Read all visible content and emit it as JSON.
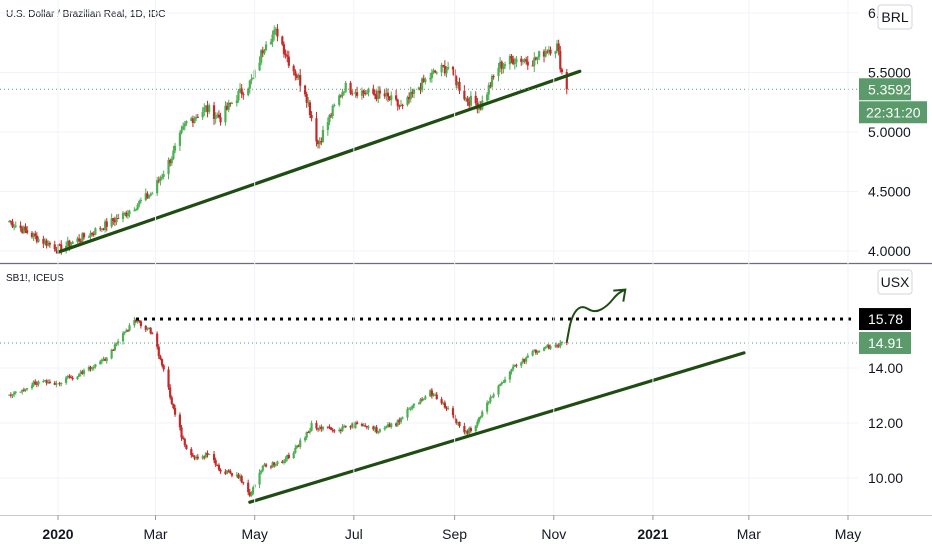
{
  "colors": {
    "up": "#26a69a",
    "down": "#b22833",
    "candle_up": "#4caf50",
    "candle_down": "#c62828",
    "trend": "#1e4d12",
    "price_green": "#5b9a6b",
    "price_black": "#000000",
    "grid_separator": "#9598a1"
  },
  "chart_data": [
    {
      "type": "candlestick",
      "title": "U.S. Dollar / Brazilian Real, 1D, IDC",
      "currency": "BRL",
      "ylim": [
        3.86,
        6.15
      ],
      "y_ticks": [
        "6.",
        "5.5000",
        "5.0000",
        "4.5000",
        "4.0000"
      ],
      "y_tick_values": [
        6.0,
        5.5,
        5.0,
        4.5,
        4.0
      ],
      "last_price": "5.3592",
      "last_price_value": 5.3592,
      "countdown": "22:31:20",
      "anchors": [
        [
          "2019-12-01",
          4.26
        ],
        [
          "2019-12-20",
          4.1
        ],
        [
          "2020-01-02",
          4.02
        ],
        [
          "2020-01-20",
          4.14
        ],
        [
          "2020-02-10",
          4.3
        ],
        [
          "2020-02-28",
          4.49
        ],
        [
          "2020-03-12",
          4.82
        ],
        [
          "2020-03-20",
          5.08
        ],
        [
          "2020-04-01",
          5.2
        ],
        [
          "2020-04-10",
          5.12
        ],
        [
          "2020-04-20",
          5.3
        ],
        [
          "2020-04-30",
          5.44
        ],
        [
          "2020-05-08",
          5.78
        ],
        [
          "2020-05-15",
          5.84
        ],
        [
          "2020-05-22",
          5.6
        ],
        [
          "2020-06-01",
          5.35
        ],
        [
          "2020-06-09",
          4.9
        ],
        [
          "2020-06-17",
          5.15
        ],
        [
          "2020-06-25",
          5.38
        ],
        [
          "2020-07-08",
          5.33
        ],
        [
          "2020-07-20",
          5.3
        ],
        [
          "2020-07-31",
          5.2
        ],
        [
          "2020-08-10",
          5.38
        ],
        [
          "2020-08-20",
          5.5
        ],
        [
          "2020-08-28",
          5.55
        ],
        [
          "2020-09-08",
          5.28
        ],
        [
          "2020-09-17",
          5.22
        ],
        [
          "2020-09-28",
          5.55
        ],
        [
          "2020-10-08",
          5.62
        ],
        [
          "2020-10-20",
          5.6
        ],
        [
          "2020-10-28",
          5.7
        ],
        [
          "2020-11-03",
          5.72
        ],
        [
          "2020-11-06",
          5.5
        ],
        [
          "2020-11-09",
          5.3592
        ]
      ],
      "trendline": {
        "from": [
          "2020-01-01",
          3.99
        ],
        "to": [
          "2020-11-17",
          5.51
        ]
      }
    },
    {
      "type": "candlestick",
      "title": "SB1!, ICEUS",
      "currency": "USX",
      "ylim": [
        8.9,
        16.4
      ],
      "y_ticks": [
        "14.00",
        "12.00",
        "10.00"
      ],
      "y_tick_values": [
        14.0,
        12.0,
        10.0
      ],
      "last_price": "14.91",
      "last_price_value": 14.91,
      "level_label": "15.78",
      "level_value": 15.78,
      "anchors": [
        [
          "2019-12-01",
          12.9
        ],
        [
          "2019-12-15",
          13.4
        ],
        [
          "2020-01-01",
          13.5
        ],
        [
          "2020-01-15",
          13.8
        ],
        [
          "2020-02-01",
          14.4
        ],
        [
          "2020-02-12",
          15.4
        ],
        [
          "2020-02-18",
          15.7
        ],
        [
          "2020-02-28",
          15.3
        ],
        [
          "2020-03-06",
          13.9
        ],
        [
          "2020-03-13",
          12.3
        ],
        [
          "2020-03-20",
          11.0
        ],
        [
          "2020-03-27",
          10.7
        ],
        [
          "2020-04-03",
          10.9
        ],
        [
          "2020-04-10",
          10.3
        ],
        [
          "2020-04-22",
          10.0
        ],
        [
          "2020-04-28",
          9.3
        ],
        [
          "2020-05-06",
          10.5
        ],
        [
          "2020-05-15",
          10.5
        ],
        [
          "2020-05-26",
          11.0
        ],
        [
          "2020-06-05",
          11.9
        ],
        [
          "2020-06-15",
          11.8
        ],
        [
          "2020-06-25",
          11.8
        ],
        [
          "2020-07-06",
          12.0
        ],
        [
          "2020-07-16",
          11.7
        ],
        [
          "2020-07-27",
          12.0
        ],
        [
          "2020-08-05",
          12.6
        ],
        [
          "2020-08-17",
          13.1
        ],
        [
          "2020-08-27",
          12.6
        ],
        [
          "2020-09-07",
          11.6
        ],
        [
          "2020-09-15",
          12.0
        ],
        [
          "2020-09-24",
          13.0
        ],
        [
          "2020-10-07",
          14.0
        ],
        [
          "2020-10-20",
          14.6
        ],
        [
          "2020-10-29",
          14.8
        ],
        [
          "2020-11-09",
          14.91
        ]
      ],
      "trendline": {
        "from": [
          "2020-04-28",
          9.12
        ],
        "to": [
          "2021-02-26",
          14.55
        ]
      },
      "level_line": {
        "from": "2020-02-18",
        "value": 15.78
      },
      "projection": [
        [
          "2020-11-09",
          14.95
        ],
        [
          "2020-11-12",
          15.9
        ],
        [
          "2020-11-18",
          16.3
        ],
        [
          "2020-11-26",
          16.0
        ],
        [
          "2020-12-04",
          16.25
        ],
        [
          "2020-12-10",
          16.7
        ],
        [
          "2020-12-15",
          16.85
        ]
      ]
    }
  ],
  "x_axis": {
    "ticks": [
      {
        "label": "2020",
        "date": "2020-01-01",
        "bold": true
      },
      {
        "label": "Mar",
        "date": "2020-03-01",
        "bold": false
      },
      {
        "label": "May",
        "date": "2020-05-01",
        "bold": false
      },
      {
        "label": "Jul",
        "date": "2020-07-01",
        "bold": false
      },
      {
        "label": "Sep",
        "date": "2020-09-01",
        "bold": false
      },
      {
        "label": "Nov",
        "date": "2020-11-01",
        "bold": false
      },
      {
        "label": "2021",
        "date": "2021-01-01",
        "bold": true
      },
      {
        "label": "Mar",
        "date": "2021-03-01",
        "bold": false
      },
      {
        "label": "May",
        "date": "2021-05-01",
        "bold": false
      }
    ]
  }
}
